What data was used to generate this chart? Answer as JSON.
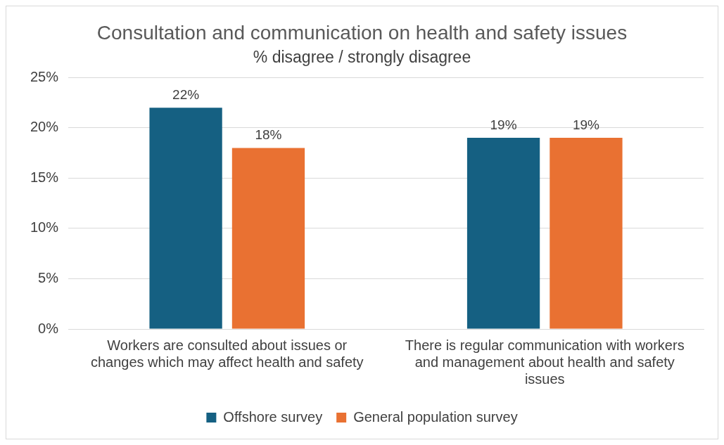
{
  "chart_data": {
    "type": "bar",
    "title": "Consultation and communication on health and safety issues",
    "subtitle": "% disagree / strongly disagree",
    "categories": [
      "Workers are consulted about issues or changes which may affect health and safety",
      "There is regular communication with workers and management about health and safety issues"
    ],
    "series": [
      {
        "name": "Offshore survey",
        "color": "#156082",
        "values": [
          22,
          19
        ],
        "value_labels": [
          "22%",
          "19%"
        ]
      },
      {
        "name": "General population survey",
        "color": "#e97132",
        "values": [
          18,
          19
        ],
        "value_labels": [
          "18%",
          "19%"
        ]
      }
    ],
    "ylim": [
      0,
      25
    ],
    "yticks": [
      {
        "value": 0,
        "label": "0%"
      },
      {
        "value": 5,
        "label": "5%"
      },
      {
        "value": 10,
        "label": "10%"
      },
      {
        "value": 15,
        "label": "15%"
      },
      {
        "value": 20,
        "label": "20%"
      },
      {
        "value": 25,
        "label": "25%"
      }
    ],
    "grid": "y",
    "legend": "bottom"
  }
}
